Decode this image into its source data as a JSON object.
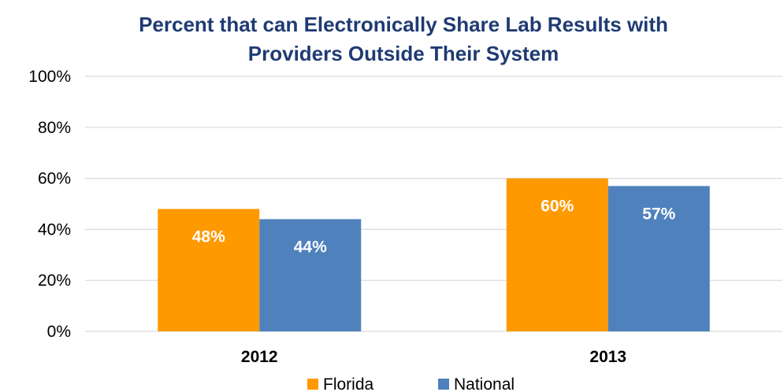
{
  "chart_data": {
    "type": "bar",
    "title_lines": [
      "Percent that can Electronically Share Lab Results with",
      "Providers Outside Their System"
    ],
    "categories": [
      "2012",
      "2013"
    ],
    "series": [
      {
        "name": "Florida",
        "color": "#FF9900",
        "values": [
          48,
          60
        ],
        "labels": [
          "48%",
          "60%"
        ]
      },
      {
        "name": "National",
        "color": "#4F81BD",
        "values": [
          44,
          57
        ],
        "labels": [
          "44%",
          "57%"
        ]
      }
    ],
    "ylim": [
      0,
      100
    ],
    "yticks": [
      0,
      20,
      40,
      60,
      80,
      100
    ],
    "ytick_labels": [
      "0%",
      "20%",
      "40%",
      "60%",
      "80%",
      "100%"
    ],
    "grid": true,
    "legend_position": "bottom",
    "title_color": "#1F3B73",
    "grid_color": "#D9D9D9"
  }
}
